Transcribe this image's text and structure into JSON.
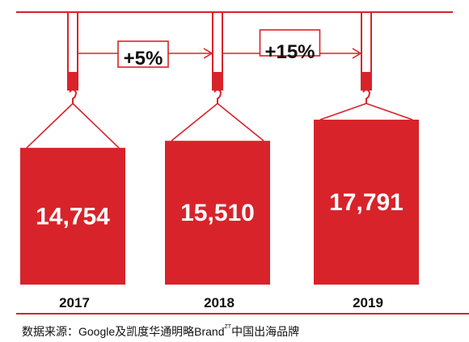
{
  "chart_data": {
    "type": "bar",
    "categories": [
      "2017",
      "2018",
      "2019"
    ],
    "values": [
      14754,
      15510,
      17791
    ],
    "value_labels": [
      "14,754",
      "15,510",
      "17,791"
    ],
    "growth_labels": [
      "+5%",
      "+15%"
    ],
    "title": "",
    "xlabel": "",
    "ylabel": ""
  },
  "colors": {
    "accent": "#d8232a",
    "text": "#111111",
    "bar_text": "#ffffff"
  },
  "source": {
    "prefix": "数据来源：Google及凯度华通明略Brand",
    "superscript": "ZT",
    "suffix": "中国出海品牌"
  }
}
